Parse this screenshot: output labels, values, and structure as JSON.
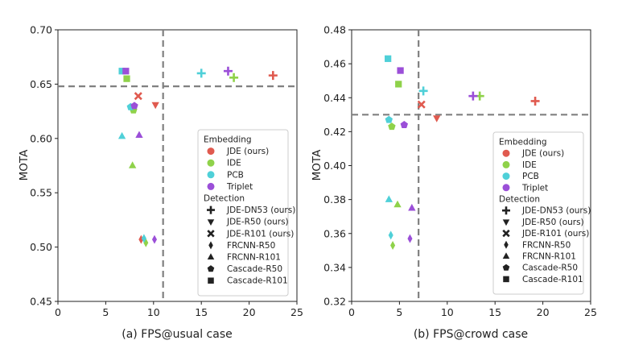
{
  "chart_data": [
    {
      "type": "scatter",
      "caption": "(a) FPS@usual case",
      "ylabel": "MOTA",
      "xlabel": "",
      "xlim": [
        0,
        25
      ],
      "ylim": [
        0.45,
        0.7
      ],
      "xticks": [
        "0",
        "5",
        "10",
        "15",
        "20",
        "25"
      ],
      "yticks": [
        "0.45",
        "0.50",
        "0.55",
        "0.60",
        "0.65",
        "0.70"
      ],
      "ref_lines": {
        "x": 11,
        "y": 0.648
      },
      "points": [
        {
          "emb": "JDE",
          "det": "JDE-DN53",
          "x": 22.5,
          "y": 0.658
        },
        {
          "emb": "JDE",
          "det": "JDE-R50",
          "x": 10.2,
          "y": 0.631
        },
        {
          "emb": "JDE",
          "det": "JDE-R101",
          "x": 8.4,
          "y": 0.639
        },
        {
          "emb": "JDE",
          "det": "FRCNN-R50",
          "x": 8.7,
          "y": 0.507
        },
        {
          "emb": "IDE",
          "det": "JDE-DN53",
          "x": 18.4,
          "y": 0.656
        },
        {
          "emb": "IDE",
          "det": "Cascade-R101",
          "x": 7.2,
          "y": 0.655
        },
        {
          "emb": "IDE",
          "det": "Cascade-R50",
          "x": 7.9,
          "y": 0.626
        },
        {
          "emb": "IDE",
          "det": "FRCNN-R101",
          "x": 7.8,
          "y": 0.575
        },
        {
          "emb": "IDE",
          "det": "FRCNN-R50",
          "x": 9.2,
          "y": 0.504
        },
        {
          "emb": "PCB",
          "det": "JDE-DN53",
          "x": 15.0,
          "y": 0.66
        },
        {
          "emb": "PCB",
          "det": "Cascade-R101",
          "x": 6.7,
          "y": 0.662
        },
        {
          "emb": "PCB",
          "det": "Cascade-R50",
          "x": 7.6,
          "y": 0.629
        },
        {
          "emb": "PCB",
          "det": "FRCNN-R101",
          "x": 6.7,
          "y": 0.602
        },
        {
          "emb": "PCB",
          "det": "FRCNN-R50",
          "x": 9.0,
          "y": 0.508
        },
        {
          "emb": "Triplet",
          "det": "JDE-DN53",
          "x": 17.8,
          "y": 0.662
        },
        {
          "emb": "Triplet",
          "det": "Cascade-R101",
          "x": 7.1,
          "y": 0.662
        },
        {
          "emb": "Triplet",
          "det": "Cascade-R50",
          "x": 8.0,
          "y": 0.63
        },
        {
          "emb": "Triplet",
          "det": "FRCNN-R101",
          "x": 8.5,
          "y": 0.603
        },
        {
          "emb": "Triplet",
          "det": "FRCNN-R50",
          "x": 10.1,
          "y": 0.507
        }
      ]
    },
    {
      "type": "scatter",
      "caption": "(b) FPS@crowd case",
      "ylabel": "MOTA",
      "xlabel": "",
      "xlim": [
        0,
        25
      ],
      "ylim": [
        0.32,
        0.48
      ],
      "xticks": [
        "0",
        "5",
        "10",
        "15",
        "20",
        "25"
      ],
      "yticks": [
        "0.32",
        "0.34",
        "0.36",
        "0.38",
        "0.40",
        "0.42",
        "0.44",
        "0.46",
        "0.48"
      ],
      "ref_lines": {
        "x": 7,
        "y": 0.43
      },
      "points": [
        {
          "emb": "JDE",
          "det": "JDE-DN53",
          "x": 19.2,
          "y": 0.438
        },
        {
          "emb": "JDE",
          "det": "JDE-R50",
          "x": 8.9,
          "y": 0.428
        },
        {
          "emb": "JDE",
          "det": "JDE-R101",
          "x": 7.3,
          "y": 0.436
        },
        {
          "emb": "IDE",
          "det": "JDE-DN53",
          "x": 13.4,
          "y": 0.441
        },
        {
          "emb": "IDE",
          "det": "Cascade-R101",
          "x": 4.9,
          "y": 0.448
        },
        {
          "emb": "IDE",
          "det": "Cascade-R50",
          "x": 4.2,
          "y": 0.423
        },
        {
          "emb": "IDE",
          "det": "FRCNN-R101",
          "x": 4.8,
          "y": 0.377
        },
        {
          "emb": "IDE",
          "det": "FRCNN-R50",
          "x": 4.3,
          "y": 0.353
        },
        {
          "emb": "PCB",
          "det": "JDE-DN53",
          "x": 7.5,
          "y": 0.444
        },
        {
          "emb": "PCB",
          "det": "Cascade-R101",
          "x": 3.8,
          "y": 0.463
        },
        {
          "emb": "PCB",
          "det": "Cascade-R50",
          "x": 3.9,
          "y": 0.427
        },
        {
          "emb": "PCB",
          "det": "FRCNN-R101",
          "x": 3.9,
          "y": 0.38
        },
        {
          "emb": "PCB",
          "det": "FRCNN-R50",
          "x": 4.1,
          "y": 0.359
        },
        {
          "emb": "Triplet",
          "det": "JDE-DN53",
          "x": 12.7,
          "y": 0.441
        },
        {
          "emb": "Triplet",
          "det": "Cascade-R101",
          "x": 5.1,
          "y": 0.456
        },
        {
          "emb": "Triplet",
          "det": "Cascade-R50",
          "x": 5.5,
          "y": 0.424
        },
        {
          "emb": "Triplet",
          "det": "FRCNN-R101",
          "x": 6.3,
          "y": 0.375
        },
        {
          "emb": "Triplet",
          "det": "FRCNN-R50",
          "x": 6.1,
          "y": 0.357
        }
      ]
    }
  ],
  "legend": {
    "embedding_title": "Embedding",
    "embeddings": [
      {
        "key": "JDE",
        "label": "JDE (ours)",
        "color": "#e05a4f"
      },
      {
        "key": "IDE",
        "label": "IDE",
        "color": "#8fd24a"
      },
      {
        "key": "PCB",
        "label": "PCB",
        "color": "#4fd0d8"
      },
      {
        "key": "Triplet",
        "label": "Triplet",
        "color": "#9b4fd8"
      }
    ],
    "detection_title": "Detection",
    "detections": [
      {
        "key": "JDE-DN53",
        "label": "JDE-DN53 (ours)",
        "marker": "plus"
      },
      {
        "key": "JDE-R50",
        "label": "JDE-R50 (ours)",
        "marker": "tri-down"
      },
      {
        "key": "JDE-R101",
        "label": "JDE-R101 (ours)",
        "marker": "x"
      },
      {
        "key": "FRCNN-R50",
        "label": "FRCNN-R50",
        "marker": "diamond"
      },
      {
        "key": "FRCNN-R101",
        "label": "FRCNN-R101",
        "marker": "tri-up"
      },
      {
        "key": "Cascade-R50",
        "label": "Cascade-R50",
        "marker": "pentagon"
      },
      {
        "key": "Cascade-R101",
        "label": "Cascade-R101",
        "marker": "square"
      }
    ]
  }
}
